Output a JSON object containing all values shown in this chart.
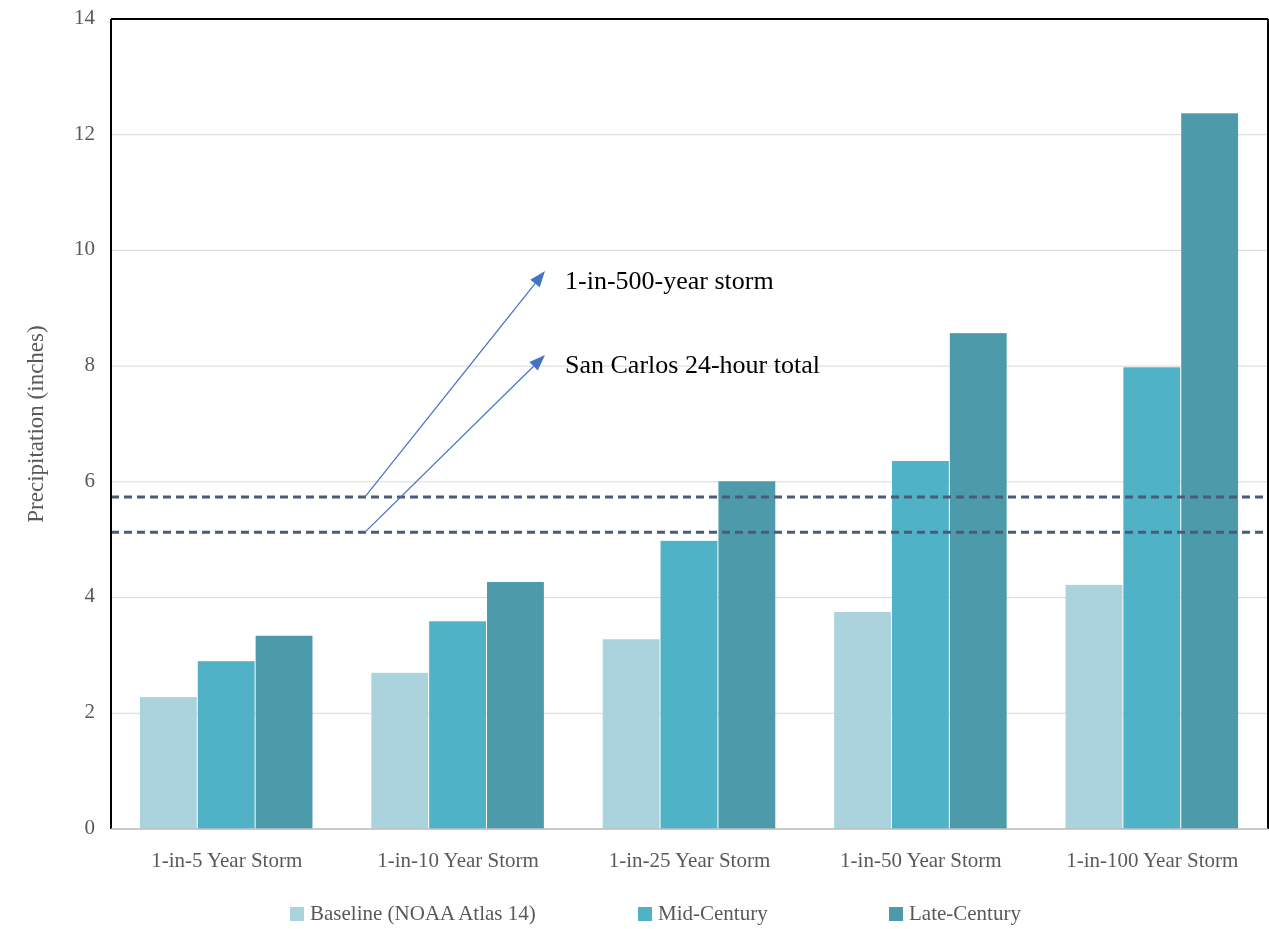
{
  "chart_data": {
    "type": "bar",
    "ylabel": "Precipitation (inches)",
    "categories": [
      "1-in-5 Year Storm",
      "1-in-10 Year Storm",
      "1-in-25 Year Storm",
      "1-in-50 Year Storm",
      "1-in-100 Year Storm"
    ],
    "series": [
      {
        "name": "Baseline (NOAA Atlas 14)",
        "color": "#abd3dd",
        "values": [
          2.28,
          2.7,
          3.28,
          3.75,
          4.22
        ]
      },
      {
        "name": "Mid-Century",
        "color": "#4fb2c7",
        "values": [
          2.9,
          3.59,
          4.98,
          6.36,
          7.98
        ]
      },
      {
        "name": "Late-Century",
        "color": "#4d9aaa",
        "values": [
          3.34,
          4.27,
          6.01,
          8.57,
          12.37
        ]
      }
    ],
    "ylim": [
      0,
      14
    ],
    "yticks": [
      0,
      2,
      4,
      6,
      8,
      10,
      12,
      14
    ],
    "grid": "y",
    "legend": "bottom",
    "ref_lines": [
      {
        "axis": "y",
        "value": 5.74,
        "label": "1-in-500-year storm",
        "color": "#4a5a78",
        "line_style": "dashed"
      },
      {
        "axis": "y",
        "value": 5.13,
        "label": "San Carlos 24-hour total",
        "color": "#4a5a78",
        "line_style": "dashed"
      }
    ]
  }
}
